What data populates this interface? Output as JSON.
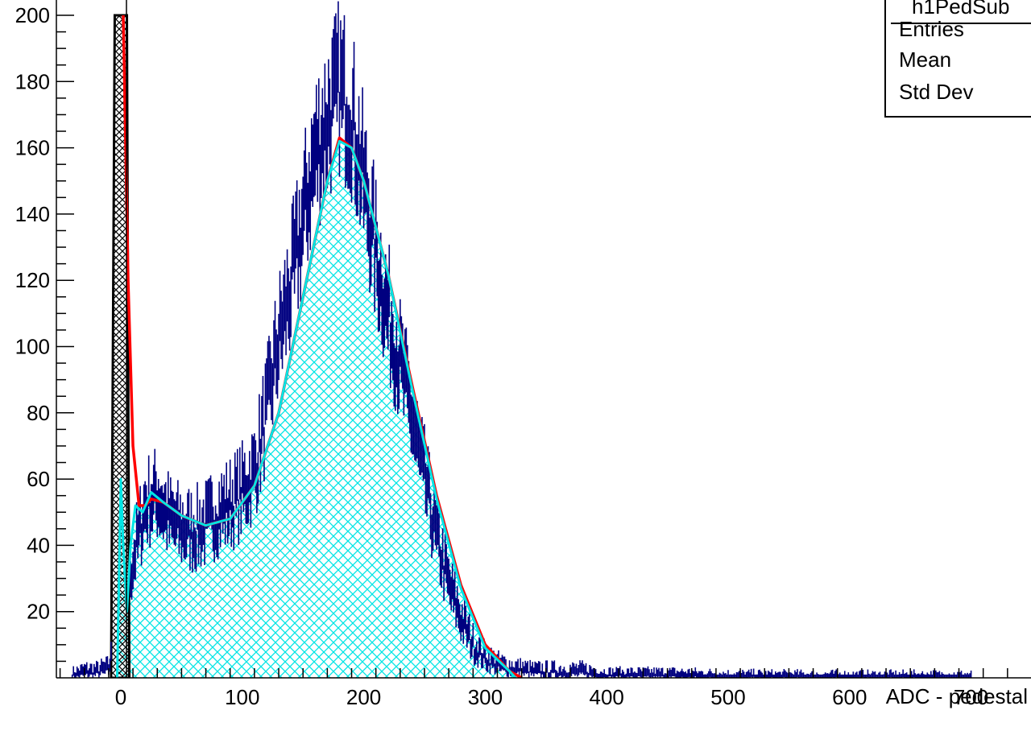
{
  "chart_data": {
    "type": "histogram",
    "xlabel": "ADC - pedestal",
    "ylabel": "",
    "xlim": [
      -55,
      760
    ],
    "ylim": [
      0,
      200
    ],
    "x_ticks": [
      0,
      100,
      200,
      300,
      400,
      500,
      600,
      700
    ],
    "x_tick_labels": [
      "0",
      "100",
      "200",
      "300",
      "400",
      "500",
      "600",
      "700"
    ],
    "y_ticks": [
      20,
      40,
      60,
      80,
      100,
      120,
      140,
      160,
      180,
      200
    ],
    "y_tick_labels": [
      "20",
      "40",
      "60",
      "80",
      "100",
      "120",
      "140",
      "160",
      "180",
      "200"
    ],
    "grid": false,
    "colors": {
      "histogram": "#000080",
      "fit_total": "#ff0000",
      "fit_signal": "#00e5e5",
      "pedestal": "#000000"
    },
    "series": [
      {
        "name": "histogram",
        "kind": "histogram-with-error-bars",
        "points": [
          [
            -40,
            1
          ],
          [
            -30,
            2
          ],
          [
            -20,
            2
          ],
          [
            -10,
            3
          ],
          [
            10,
            35
          ],
          [
            20,
            52
          ],
          [
            30,
            55
          ],
          [
            40,
            48
          ],
          [
            50,
            45
          ],
          [
            60,
            44
          ],
          [
            70,
            46
          ],
          [
            80,
            50
          ],
          [
            90,
            52
          ],
          [
            100,
            56
          ],
          [
            110,
            62
          ],
          [
            120,
            80
          ],
          [
            130,
            102
          ],
          [
            140,
            118
          ],
          [
            150,
            138
          ],
          [
            160,
            158
          ],
          [
            170,
            168
          ],
          [
            180,
            178
          ],
          [
            190,
            170
          ],
          [
            200,
            150
          ],
          [
            210,
            128
          ],
          [
            220,
            110
          ],
          [
            230,
            95
          ],
          [
            240,
            78
          ],
          [
            250,
            60
          ],
          [
            260,
            42
          ],
          [
            270,
            28
          ],
          [
            280,
            18
          ],
          [
            290,
            10
          ],
          [
            300,
            6
          ],
          [
            310,
            4
          ],
          [
            320,
            3
          ],
          [
            340,
            2
          ],
          [
            360,
            2
          ],
          [
            380,
            2
          ],
          [
            400,
            1
          ],
          [
            420,
            1
          ],
          [
            440,
            1
          ],
          [
            460,
            1
          ],
          [
            500,
            0.5
          ],
          [
            600,
            0.3
          ],
          [
            700,
            0.3
          ]
        ]
      },
      {
        "name": "fit_total",
        "kind": "line",
        "points": [
          [
            2,
            200
          ],
          [
            6,
            120
          ],
          [
            10,
            70
          ],
          [
            15,
            52
          ],
          [
            20,
            52
          ],
          [
            25,
            54
          ],
          [
            35,
            53
          ],
          [
            50,
            49
          ],
          [
            70,
            46
          ],
          [
            90,
            48
          ],
          [
            110,
            58
          ],
          [
            130,
            80
          ],
          [
            150,
            115
          ],
          [
            170,
            150
          ],
          [
            180,
            163
          ],
          [
            190,
            160
          ],
          [
            200,
            150
          ],
          [
            220,
            122
          ],
          [
            240,
            88
          ],
          [
            260,
            55
          ],
          [
            280,
            28
          ],
          [
            300,
            10
          ],
          [
            320,
            2
          ],
          [
            330,
            0
          ]
        ]
      },
      {
        "name": "fit_signal",
        "kind": "filled-hatched",
        "points": [
          [
            -3,
            0
          ],
          [
            -1,
            40
          ],
          [
            0,
            60
          ],
          [
            2,
            40
          ],
          [
            5,
            20
          ],
          [
            8,
            40
          ],
          [
            12,
            52
          ],
          [
            18,
            50
          ],
          [
            25,
            56
          ],
          [
            35,
            53
          ],
          [
            50,
            49
          ],
          [
            70,
            46
          ],
          [
            90,
            48
          ],
          [
            110,
            58
          ],
          [
            130,
            80
          ],
          [
            150,
            115
          ],
          [
            170,
            150
          ],
          [
            180,
            162
          ],
          [
            190,
            160
          ],
          [
            200,
            150
          ],
          [
            220,
            122
          ],
          [
            240,
            87
          ],
          [
            260,
            54
          ],
          [
            280,
            27
          ],
          [
            300,
            9
          ],
          [
            320,
            2
          ],
          [
            325,
            0
          ]
        ]
      },
      {
        "name": "pedestal",
        "kind": "filled-hatched",
        "points": [
          [
            -8,
            0
          ],
          [
            -5,
            200
          ],
          [
            5,
            200
          ],
          [
            7,
            0
          ]
        ]
      }
    ]
  },
  "stats_box": {
    "title": "h1PedSub",
    "rows": [
      "Entries",
      "Mean",
      "Std Dev"
    ]
  }
}
